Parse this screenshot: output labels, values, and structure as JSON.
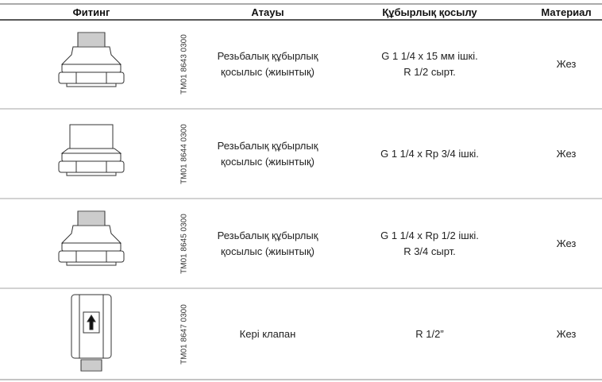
{
  "table": {
    "headers": [
      "Фитинг",
      "Атауы",
      "Құбырлық қосылу",
      "Материал"
    ],
    "rows": [
      {
        "code": "TM01 8643 0300",
        "name": [
          "Резьбалық құбырлық",
          "қосылыс (жиынтық)"
        ],
        "connection": [
          "G 1 1/4 x 15 мм ішкі.",
          "R 1/2 сырт."
        ],
        "material": "Жез"
      },
      {
        "code": "TM01 8644 0300",
        "name": [
          "Резьбалық құбырлық",
          "қосылыс (жиынтық)"
        ],
        "connection": [
          "G 1 1/4 x Rp 3/4 ішкі."
        ],
        "material": "Жез"
      },
      {
        "code": "TM01 8645 0300",
        "name": [
          "Резьбалық құбырлық",
          "қосылыс (жиынтық)"
        ],
        "connection": [
          "G 1 1/4 x Rp 1/2 ішкі.",
          "R 3/4 сырт."
        ],
        "material": "Жез"
      },
      {
        "code": "TM01 8647 0300",
        "name": [
          "Кері клапан"
        ],
        "connection": [
          "R 1/2”"
        ],
        "material": "Жез"
      }
    ]
  }
}
